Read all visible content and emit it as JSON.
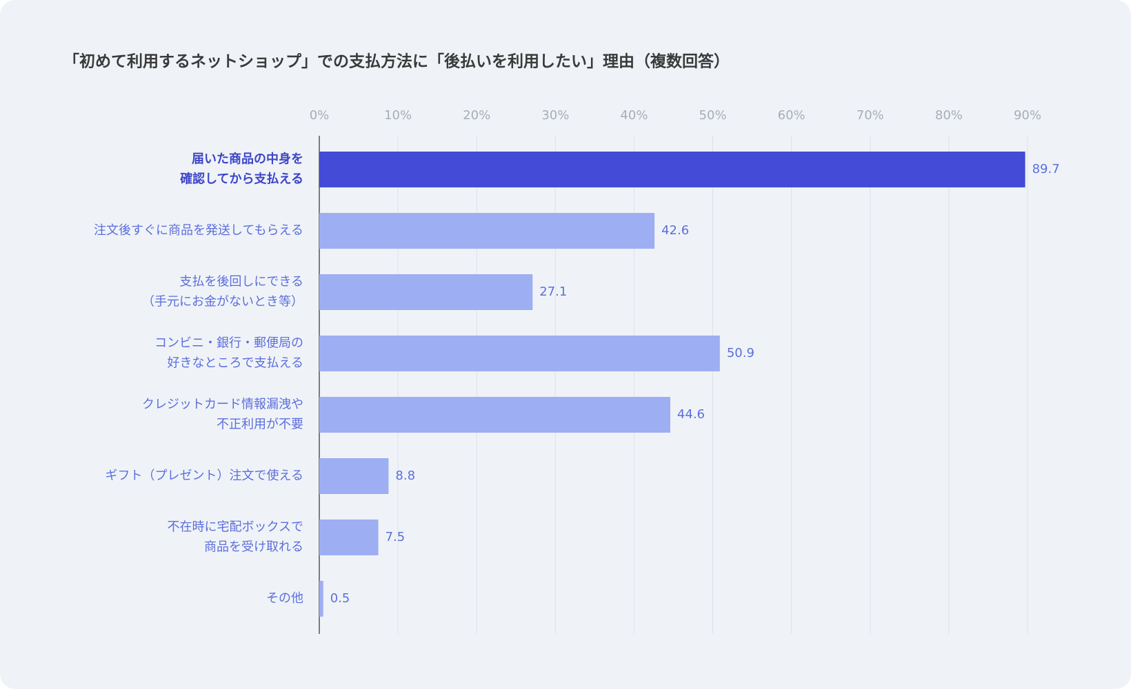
{
  "chart_data": {
    "type": "hbar",
    "title": "「初めて利用するネットショップ」での支払方法に「後払いを利用したい」理由（複数回答）",
    "categories": [
      [
        "届いた商品の中身を",
        "確認してから支払える"
      ],
      [
        "注文後すぐに商品を発送してもらえる"
      ],
      [
        "支払を後回しにできる",
        "（手元にお金がないとき等）"
      ],
      [
        "コンビニ・銀行・郵便局の",
        "好きなところで支払える"
      ],
      [
        "クレジットカード情報漏洩や",
        "不正利用が不要"
      ],
      [
        "ギフト（プレゼント）注文で使える"
      ],
      [
        "不在時に宅配ボックスで",
        "商品を受け取れる"
      ],
      [
        "その他"
      ]
    ],
    "values": [
      89.7,
      42.6,
      27.1,
      50.9,
      44.6,
      8.8,
      7.5,
      0.5
    ],
    "color": "#9eaef2",
    "highlight": 0,
    "highlight_color": "#434bd7",
    "xlim": [
      0,
      90
    ],
    "xticks": [
      {
        "value": 0,
        "label": "0%"
      },
      {
        "value": 10,
        "label": "10%"
      },
      {
        "value": 20,
        "label": "20%"
      },
      {
        "value": 30,
        "label": "30%"
      },
      {
        "value": 40,
        "label": "40%"
      },
      {
        "value": 50,
        "label": "50%"
      },
      {
        "value": 60,
        "label": "60%"
      },
      {
        "value": 70,
        "label": "70%"
      },
      {
        "value": 80,
        "label": "80%"
      },
      {
        "value": 90,
        "label": "90%"
      }
    ],
    "grid": true
  }
}
